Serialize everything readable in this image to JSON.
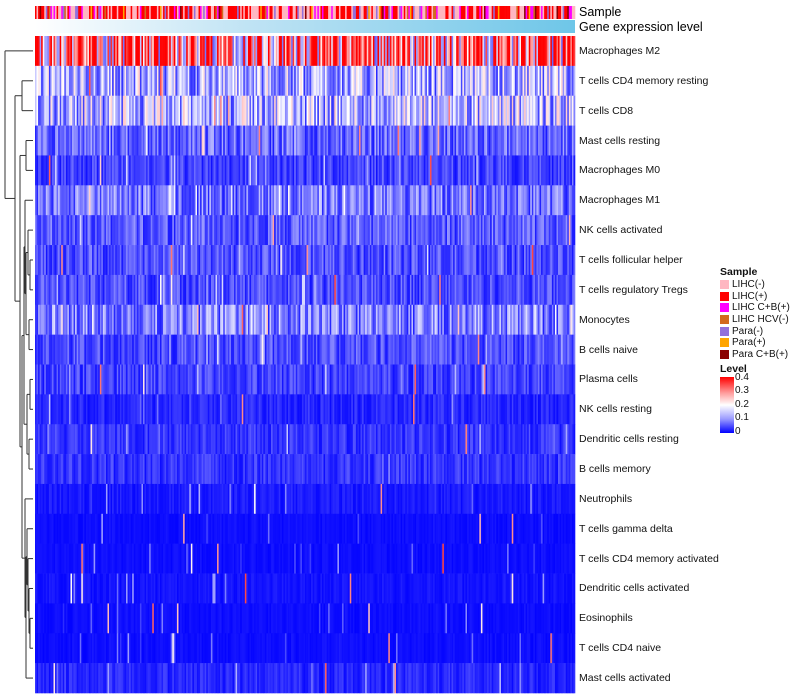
{
  "chart_data": {
    "type": "heatmap",
    "title": "",
    "annotations": [
      {
        "name": "Sample"
      },
      {
        "name": "Gene expression level",
        "color": "#6ec6e8"
      }
    ],
    "rows": [
      {
        "label": "Macrophages M2",
        "mean": 0.32
      },
      {
        "label": "T cells CD4 memory resting",
        "mean": 0.13
      },
      {
        "label": "T cells CD8",
        "mean": 0.14
      },
      {
        "label": "Mast cells resting",
        "mean": 0.08
      },
      {
        "label": "Macrophages M0",
        "mean": 0.05
      },
      {
        "label": "Macrophages M1",
        "mean": 0.09
      },
      {
        "label": "NK cells activated",
        "mean": 0.07
      },
      {
        "label": "T cells follicular helper",
        "mean": 0.06
      },
      {
        "label": "T cells regulatory  Tregs",
        "mean": 0.06
      },
      {
        "label": "Monocytes",
        "mean": 0.1
      },
      {
        "label": "B cells naive",
        "mean": 0.06
      },
      {
        "label": "Plasma cells",
        "mean": 0.05
      },
      {
        "label": "NK cells resting",
        "mean": 0.03
      },
      {
        "label": "Dendritic cells resting",
        "mean": 0.04
      },
      {
        "label": "B cells memory",
        "mean": 0.04
      },
      {
        "label": "Neutrophils",
        "mean": 0.02
      },
      {
        "label": "T cells gamma delta",
        "mean": 0.01
      },
      {
        "label": "T cells CD4 memory activated",
        "mean": 0.01
      },
      {
        "label": "Dendritic cells activated",
        "mean": 0.015
      },
      {
        "label": "Eosinophils",
        "mean": 0.01
      },
      {
        "label": "T cells CD4 naive",
        "mean": 0.01
      },
      {
        "label": "Mast cells activated",
        "mean": 0.03
      }
    ],
    "n_samples": 350,
    "sample_groups": [
      {
        "label": "LIHC(-)",
        "color": "#ffb6c1"
      },
      {
        "label": "LIHC(+)",
        "color": "#ff0000"
      },
      {
        "label": "LIHC C+B(+)",
        "color": "#ff00ff"
      },
      {
        "label": "LIHC HCV(-)",
        "color": "#d2691e"
      },
      {
        "label": "Para(-)",
        "color": "#9370db"
      },
      {
        "label": "Para(+)",
        "color": "#ffa500"
      },
      {
        "label": "Para C+B(+)",
        "color": "#8b0000"
      }
    ],
    "color_scale": {
      "title": "Level",
      "min": 0,
      "max": 0.4,
      "ticks": [
        "0.4",
        "0.3",
        "0.2",
        "0.1",
        "0"
      ],
      "colors": [
        "#0000ff",
        "#ffffff",
        "#ff0000"
      ]
    },
    "legend_titles": {
      "sample": "Sample",
      "level": "Level"
    },
    "dendrogram": "rows clustered"
  }
}
